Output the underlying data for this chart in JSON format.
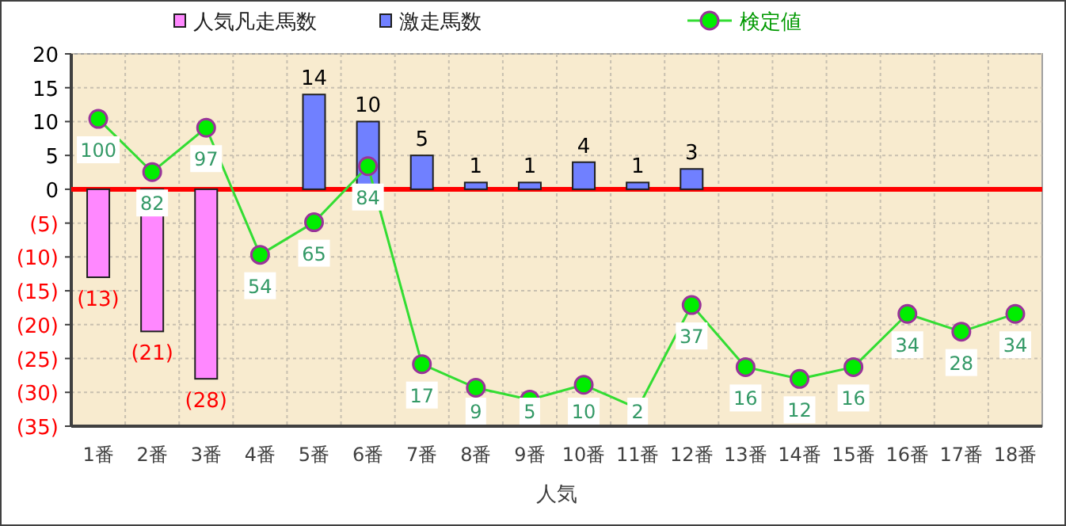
{
  "chart_data": {
    "type": "bar",
    "xlabel": "人気",
    "categories": [
      "1番",
      "2番",
      "3番",
      "4番",
      "5番",
      "6番",
      "7番",
      "8番",
      "9番",
      "10番",
      "11番",
      "12番",
      "13番",
      "14番",
      "15番",
      "16番",
      "17番",
      "18番"
    ],
    "series": [
      {
        "name": "人気凡走馬数",
        "color": "#ff88ff",
        "values": [
          -13,
          -21,
          -28,
          null,
          null,
          null,
          null,
          null,
          null,
          null,
          null,
          null,
          null,
          null,
          null,
          null,
          null,
          null
        ],
        "value_labels": [
          "(13)",
          "(21)",
          "(28)",
          null,
          null,
          null,
          null,
          null,
          null,
          null,
          null,
          null,
          null,
          null,
          null,
          null,
          null,
          null
        ]
      },
      {
        "name": "激走馬数",
        "color": "#7080ff",
        "values": [
          null,
          null,
          null,
          null,
          14,
          10,
          5,
          1,
          1,
          4,
          1,
          3,
          null,
          null,
          null,
          null,
          null,
          null
        ],
        "value_labels": [
          null,
          null,
          null,
          null,
          "14",
          "10",
          "5",
          "1",
          "1",
          "4",
          "1",
          "3",
          null,
          null,
          null,
          null,
          null,
          null
        ]
      },
      {
        "name": "検定値",
        "type": "line",
        "axis": "y2",
        "color": "#33dd33",
        "marker": "circle",
        "values": [
          100,
          82,
          97,
          54,
          65,
          84,
          17,
          9,
          5,
          10,
          2,
          37,
          16,
          12,
          16,
          34,
          28,
          34
        ],
        "value_labels": [
          "100",
          "82",
          "97",
          "54",
          "65",
          "84",
          "17",
          "9",
          "5",
          "10",
          "2",
          "37",
          "16",
          "12",
          "16",
          "34",
          "28",
          "34"
        ]
      }
    ],
    "ylim": [
      -35,
      20
    ],
    "yticks": [
      20,
      15,
      10,
      5,
      0,
      {
        "value": -5,
        "label": "(5)"
      },
      {
        "value": -10,
        "label": "(10)"
      },
      {
        "value": -15,
        "label": "(15)"
      },
      {
        "value": -20,
        "label": "(20)"
      },
      {
        "value": -25,
        "label": "(25)"
      },
      {
        "value": -30,
        "label": "(30)"
      },
      {
        "value": -35,
        "label": "(35)"
      }
    ],
    "y2lim": [
      -4,
      122
    ],
    "ref_lines": [
      {
        "axis": "y",
        "value": 0,
        "color": "#ff0000"
      }
    ],
    "grid": true,
    "legend": "top"
  }
}
